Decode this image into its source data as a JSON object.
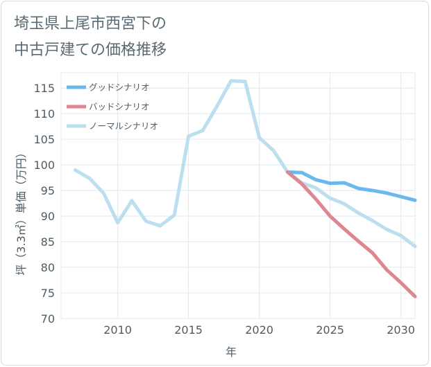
{
  "chart_data": {
    "type": "line",
    "title_lines": [
      "埼玉県上尾市西宮下の",
      "中古戸建ての価格推移"
    ],
    "xlabel": "年",
    "ylabel": "坪（3.3㎡）単価（万円）",
    "xlim": [
      2006,
      2031
    ],
    "ylim": [
      70,
      118
    ],
    "xticks": [
      2010,
      2015,
      2020,
      2025,
      2030
    ],
    "yticks": [
      70,
      75,
      80,
      85,
      90,
      95,
      100,
      105,
      110,
      115
    ],
    "grid": true,
    "legend_position": "top-left",
    "series": [
      {
        "name": "グッドシナリオ",
        "color": "#6bb8ec",
        "x": [
          2022,
          2023,
          2024,
          2025,
          2026,
          2027,
          2028,
          2029,
          2030,
          2031
        ],
        "y": [
          98.6,
          98.5,
          97.1,
          96.4,
          96.5,
          95.4,
          95.0,
          94.5,
          93.8,
          93.1
        ]
      },
      {
        "name": "バッドシナリオ",
        "color": "#de8691",
        "x": [
          2022,
          2023,
          2024,
          2025,
          2026,
          2027,
          2028,
          2029,
          2030,
          2031
        ],
        "y": [
          98.6,
          96.3,
          93.3,
          90.0,
          87.5,
          85.1,
          82.8,
          79.5,
          77.0,
          74.3
        ]
      },
      {
        "name": "ノーマルシナリオ",
        "color": "#bcdff0",
        "x": [
          2007,
          2008,
          2009,
          2010,
          2011,
          2012,
          2013,
          2014,
          2015,
          2016,
          2017,
          2018,
          2019,
          2020,
          2021,
          2022,
          2023,
          2024,
          2025,
          2026,
          2027,
          2028,
          2029,
          2030,
          2031
        ],
        "y": [
          99.0,
          97.4,
          94.5,
          88.7,
          93.0,
          89.0,
          88.1,
          90.2,
          105.6,
          106.7,
          111.4,
          116.4,
          116.3,
          105.3,
          102.8,
          98.6,
          96.5,
          95.5,
          93.5,
          92.4,
          90.6,
          89.1,
          87.4,
          86.2,
          84.1
        ]
      }
    ]
  }
}
